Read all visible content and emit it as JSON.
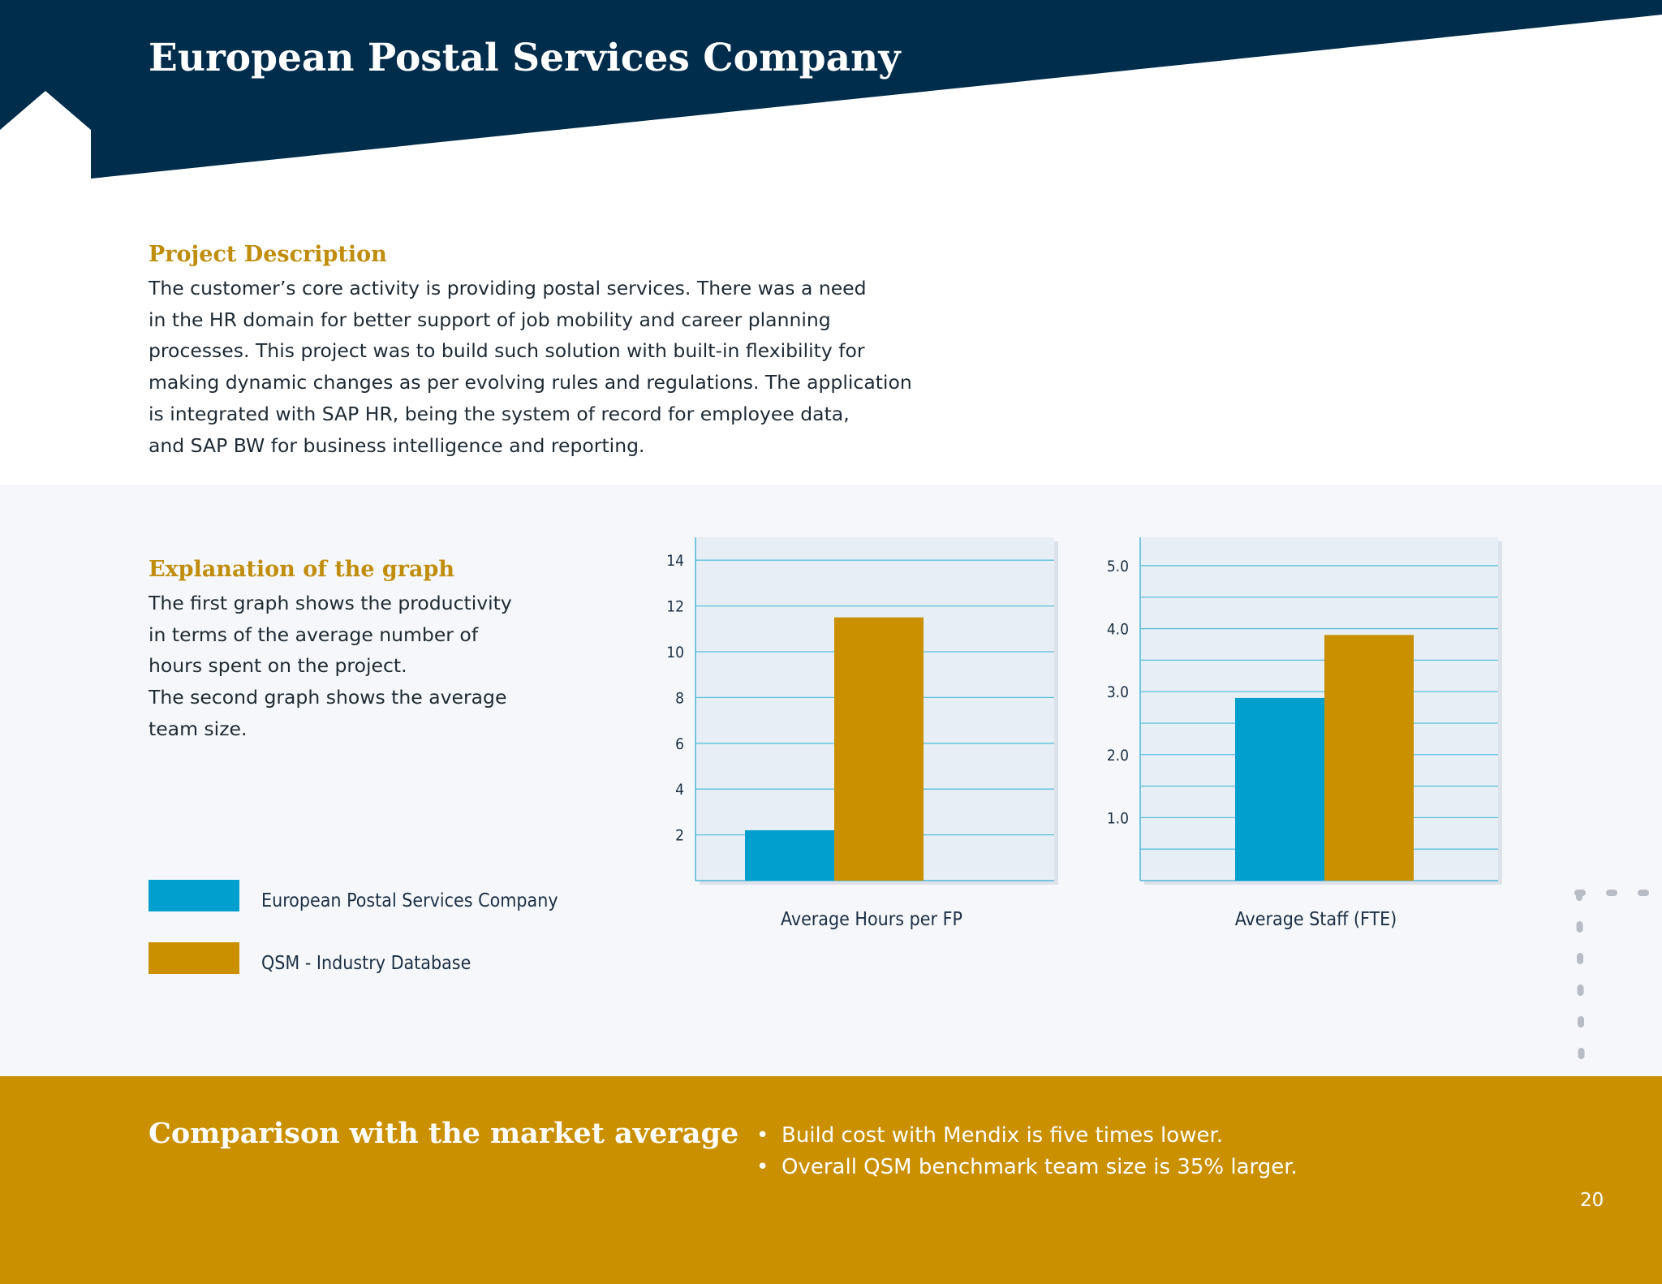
{
  "header": {
    "title": "European Postal Services Company",
    "background_color": "#002d4b"
  },
  "project": {
    "heading": "Project Description",
    "lines": [
      "The customer’s core activity is providing postal services. There was a need",
      "in the HR domain for better support of job mobility and career planning",
      "processes. This project was to build such solution with built-in flexibility for",
      "making dynamic changes as per evolving rules and regulations. The application",
      "is integrated with SAP HR, being the system of record for employee data,",
      "and SAP BW for business intelligence and reporting."
    ]
  },
  "explanation": {
    "heading": "Explanation of the graph",
    "lines": [
      "The first graph shows the productivity",
      "in terms of the average number of",
      "hours spent on the project.",
      "The second graph shows the average",
      "team size."
    ]
  },
  "legend": [
    {
      "label": "European Postal Services Company",
      "color": "#009fcd"
    },
    {
      "label": "QSM - Industry Database",
      "color": "#ca9000"
    }
  ],
  "chart_data": [
    {
      "type": "bar",
      "title": "",
      "xlabel": "Average Hours per FP",
      "ylabel": "",
      "categories": [
        "European Postal Services Company",
        "QSM - Industry Database"
      ],
      "values": [
        2.2,
        11.5
      ],
      "colors": [
        "#009fcd",
        "#ca9000"
      ],
      "ylim": [
        0,
        15
      ],
      "yticks": [
        2,
        4,
        6,
        8,
        10,
        12,
        14
      ],
      "ytick_labels": [
        "2",
        "4",
        "6",
        "8",
        "10",
        "12",
        "14"
      ],
      "gridlines": [
        2,
        4,
        6,
        8,
        10,
        12,
        14
      ],
      "grid": true
    },
    {
      "type": "bar",
      "title": "",
      "xlabel": "Average Staff (FTE)",
      "ylabel": "",
      "categories": [
        "European Postal Services Company",
        "QSM - Industry Database"
      ],
      "values": [
        2.9,
        3.9
      ],
      "colors": [
        "#009fcd",
        "#ca9000"
      ],
      "ylim": [
        0,
        5.45
      ],
      "yticks": [
        1.0,
        2.0,
        3.0,
        4.0,
        5.0
      ],
      "ytick_labels": [
        "1.0",
        "2.0",
        "3.0",
        "4.0",
        "5.0"
      ],
      "gridlines": [
        0.5,
        1.0,
        1.5,
        2.0,
        2.5,
        3.0,
        3.5,
        4.0,
        4.5,
        5.0
      ],
      "grid": true
    }
  ],
  "comparison": {
    "heading": "Comparison with the market average",
    "bullets": [
      "Build cost with Mendix is five times lower.",
      "Overall QSM benchmark team size is 35% larger."
    ]
  },
  "page_number": "20"
}
